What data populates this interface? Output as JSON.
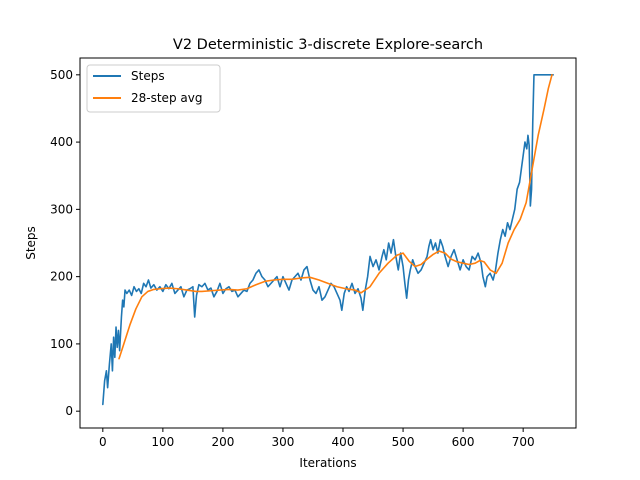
{
  "chart_data": {
    "type": "line",
    "title": "V2 Deterministic 3-discrete Explore-search",
    "xlabel": "Iterations",
    "ylabel": "Steps",
    "xlim": [
      -38,
      788
    ],
    "ylim": [
      -25,
      525
    ],
    "xticks": [
      0,
      100,
      200,
      300,
      400,
      500,
      600,
      700
    ],
    "yticks": [
      0,
      100,
      200,
      300,
      400,
      500
    ],
    "grid": false,
    "legend": {
      "position": "top-left"
    },
    "series": [
      {
        "name": "Steps",
        "color": "#1f77b4",
        "points": [
          [
            0,
            10
          ],
          [
            3,
            45
          ],
          [
            6,
            60
          ],
          [
            8,
            35
          ],
          [
            11,
            70
          ],
          [
            14,
            100
          ],
          [
            16,
            60
          ],
          [
            18,
            110
          ],
          [
            20,
            80
          ],
          [
            22,
            125
          ],
          [
            24,
            95
          ],
          [
            26,
            120
          ],
          [
            28,
            90
          ],
          [
            31,
            140
          ],
          [
            33,
            165
          ],
          [
            35,
            155
          ],
          [
            37,
            180
          ],
          [
            40,
            175
          ],
          [
            44,
            180
          ],
          [
            48,
            172
          ],
          [
            52,
            185
          ],
          [
            56,
            178
          ],
          [
            60,
            182
          ],
          [
            64,
            175
          ],
          [
            68,
            190
          ],
          [
            72,
            185
          ],
          [
            76,
            195
          ],
          [
            80,
            183
          ],
          [
            85,
            188
          ],
          [
            90,
            180
          ],
          [
            95,
            185
          ],
          [
            100,
            178
          ],
          [
            105,
            188
          ],
          [
            110,
            182
          ],
          [
            115,
            190
          ],
          [
            120,
            175
          ],
          [
            125,
            180
          ],
          [
            130,
            185
          ],
          [
            135,
            170
          ],
          [
            140,
            180
          ],
          [
            145,
            182
          ],
          [
            150,
            185
          ],
          [
            153,
            140
          ],
          [
            156,
            172
          ],
          [
            160,
            188
          ],
          [
            165,
            185
          ],
          [
            170,
            190
          ],
          [
            175,
            180
          ],
          [
            180,
            183
          ],
          [
            185,
            170
          ],
          [
            190,
            178
          ],
          [
            195,
            190
          ],
          [
            200,
            175
          ],
          [
            205,
            182
          ],
          [
            210,
            185
          ],
          [
            215,
            178
          ],
          [
            220,
            180
          ],
          [
            225,
            170
          ],
          [
            230,
            175
          ],
          [
            235,
            180
          ],
          [
            240,
            178
          ],
          [
            245,
            190
          ],
          [
            250,
            195
          ],
          [
            255,
            205
          ],
          [
            260,
            210
          ],
          [
            265,
            200
          ],
          [
            270,
            195
          ],
          [
            275,
            185
          ],
          [
            280,
            190
          ],
          [
            285,
            195
          ],
          [
            290,
            200
          ],
          [
            295,
            185
          ],
          [
            300,
            200
          ],
          [
            305,
            190
          ],
          [
            310,
            180
          ],
          [
            315,
            195
          ],
          [
            320,
            200
          ],
          [
            325,
            205
          ],
          [
            330,
            195
          ],
          [
            335,
            210
          ],
          [
            340,
            215
          ],
          [
            345,
            195
          ],
          [
            350,
            180
          ],
          [
            355,
            175
          ],
          [
            360,
            185
          ],
          [
            365,
            165
          ],
          [
            370,
            170
          ],
          [
            375,
            180
          ],
          [
            380,
            190
          ],
          [
            385,
            185
          ],
          [
            390,
            175
          ],
          [
            395,
            165
          ],
          [
            398,
            150
          ],
          [
            402,
            175
          ],
          [
            406,
            185
          ],
          [
            410,
            178
          ],
          [
            415,
            190
          ],
          [
            420,
            175
          ],
          [
            425,
            182
          ],
          [
            430,
            168
          ],
          [
            433,
            150
          ],
          [
            437,
            180
          ],
          [
            441,
            200
          ],
          [
            445,
            230
          ],
          [
            450,
            215
          ],
          [
            455,
            225
          ],
          [
            460,
            210
          ],
          [
            465,
            230
          ],
          [
            468,
            240
          ],
          [
            472,
            225
          ],
          [
            476,
            250
          ],
          [
            480,
            235
          ],
          [
            484,
            255
          ],
          [
            488,
            230
          ],
          [
            492,
            210
          ],
          [
            496,
            235
          ],
          [
            500,
            215
          ],
          [
            503,
            190
          ],
          [
            506,
            168
          ],
          [
            509,
            195
          ],
          [
            512,
            210
          ],
          [
            516,
            225
          ],
          [
            520,
            215
          ],
          [
            525,
            205
          ],
          [
            530,
            210
          ],
          [
            535,
            220
          ],
          [
            540,
            230
          ],
          [
            543,
            245
          ],
          [
            546,
            255
          ],
          [
            550,
            240
          ],
          [
            554,
            250
          ],
          [
            558,
            235
          ],
          [
            562,
            255
          ],
          [
            566,
            245
          ],
          [
            570,
            230
          ],
          [
            575,
            215
          ],
          [
            580,
            230
          ],
          [
            585,
            240
          ],
          [
            590,
            225
          ],
          [
            595,
            210
          ],
          [
            600,
            225
          ],
          [
            605,
            215
          ],
          [
            610,
            210
          ],
          [
            615,
            230
          ],
          [
            620,
            225
          ],
          [
            625,
            235
          ],
          [
            630,
            220
          ],
          [
            633,
            200
          ],
          [
            637,
            185
          ],
          [
            640,
            200
          ],
          [
            645,
            205
          ],
          [
            650,
            195
          ],
          [
            654,
            210
          ],
          [
            658,
            235
          ],
          [
            662,
            255
          ],
          [
            666,
            270
          ],
          [
            670,
            260
          ],
          [
            674,
            280
          ],
          [
            678,
            270
          ],
          [
            682,
            285
          ],
          [
            686,
            300
          ],
          [
            690,
            330
          ],
          [
            694,
            340
          ],
          [
            697,
            360
          ],
          [
            700,
            380
          ],
          [
            703,
            400
          ],
          [
            706,
            390
          ],
          [
            708,
            410
          ],
          [
            710,
            395
          ],
          [
            712,
            305
          ],
          [
            714,
            330
          ],
          [
            716,
            430
          ],
          [
            718,
            500
          ],
          [
            720,
            500
          ],
          [
            725,
            500
          ],
          [
            730,
            500
          ],
          [
            735,
            500
          ],
          [
            740,
            500
          ],
          [
            745,
            500
          ],
          [
            750,
            500
          ]
        ]
      },
      {
        "name": "28-step avg",
        "color": "#ff7f0e",
        "points": [
          [
            27,
            78
          ],
          [
            35,
            100
          ],
          [
            45,
            128
          ],
          [
            55,
            152
          ],
          [
            65,
            170
          ],
          [
            75,
            178
          ],
          [
            85,
            181
          ],
          [
            95,
            182
          ],
          [
            110,
            183
          ],
          [
            125,
            182
          ],
          [
            140,
            180
          ],
          [
            155,
            178
          ],
          [
            165,
            178
          ],
          [
            180,
            179
          ],
          [
            195,
            180
          ],
          [
            210,
            181
          ],
          [
            225,
            180
          ],
          [
            240,
            182
          ],
          [
            255,
            188
          ],
          [
            270,
            193
          ],
          [
            285,
            195
          ],
          [
            300,
            196
          ],
          [
            315,
            196
          ],
          [
            330,
            198
          ],
          [
            345,
            199
          ],
          [
            360,
            195
          ],
          [
            375,
            190
          ],
          [
            390,
            185
          ],
          [
            405,
            182
          ],
          [
            420,
            180
          ],
          [
            430,
            176
          ],
          [
            445,
            185
          ],
          [
            460,
            205
          ],
          [
            475,
            220
          ],
          [
            490,
            232
          ],
          [
            500,
            235
          ],
          [
            510,
            223
          ],
          [
            520,
            215
          ],
          [
            530,
            218
          ],
          [
            540,
            226
          ],
          [
            550,
            233
          ],
          [
            560,
            238
          ],
          [
            570,
            235
          ],
          [
            580,
            226
          ],
          [
            590,
            222
          ],
          [
            600,
            220
          ],
          [
            610,
            218
          ],
          [
            620,
            220
          ],
          [
            628,
            224
          ],
          [
            635,
            222
          ],
          [
            645,
            210
          ],
          [
            655,
            205
          ],
          [
            665,
            220
          ],
          [
            675,
            250
          ],
          [
            685,
            270
          ],
          [
            695,
            285
          ],
          [
            705,
            310
          ],
          [
            715,
            360
          ],
          [
            725,
            410
          ],
          [
            735,
            450
          ],
          [
            742,
            480
          ],
          [
            748,
            500
          ]
        ]
      }
    ]
  }
}
